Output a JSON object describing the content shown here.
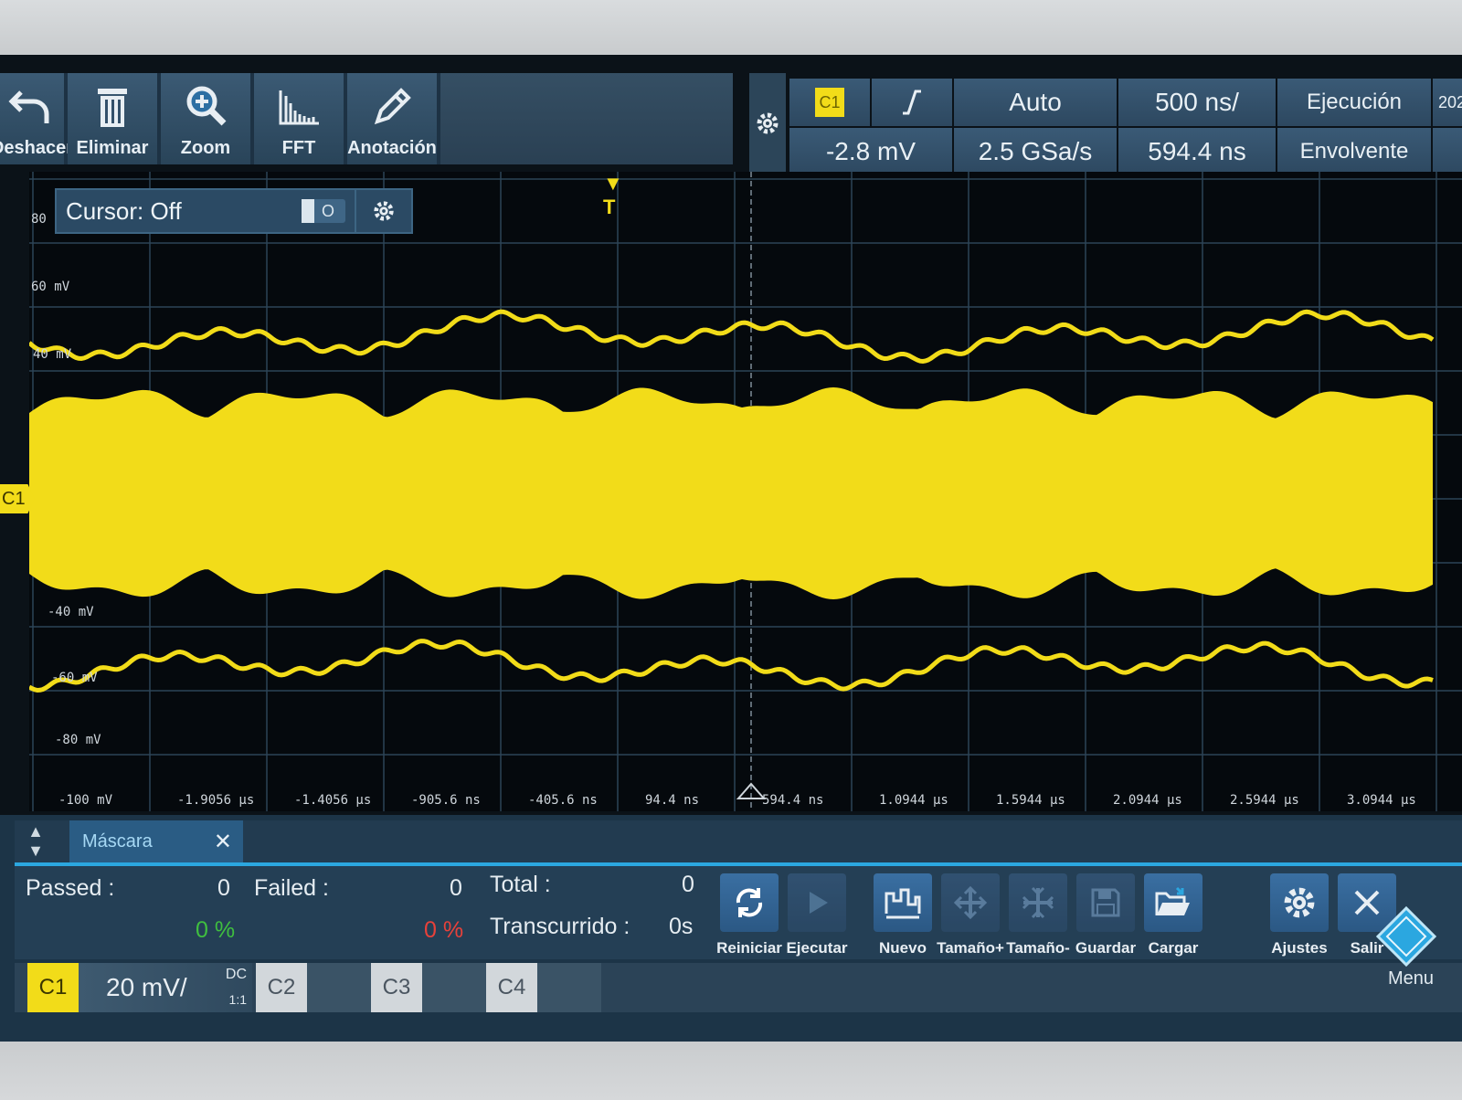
{
  "toolbar": {
    "undo": "Deshacer",
    "delete": "Eliminar",
    "zoom": "Zoom",
    "fft": "FFT",
    "annotation": "Anotación"
  },
  "status": {
    "channel_badge": "C1",
    "trigger_mode": "Auto",
    "timebase": "500 ns/",
    "run_state": "Ejecución",
    "trigger_level": "-2.8 mV",
    "sample_rate": "2.5 GSa/s",
    "horizontal_position": "594.4 ns",
    "acquisition_mode": "Envolvente",
    "date_partial": "202"
  },
  "cursor": {
    "label": "Cursor: Off",
    "toggle_label": "O"
  },
  "waveform": {
    "channel_marker": "C1",
    "trigger_marker": "T",
    "color": "#f2dc19",
    "y_labels": [
      "80",
      "60 mV",
      "40 mV",
      "-40 mV",
      "-60 mV",
      "-80 mV",
      "-100 mV"
    ],
    "x_labels": [
      "-1.9056 µs",
      "-1.4056 µs",
      "-905.6 ns",
      "-405.6 ns",
      "94.4 ns",
      "594.4 ns",
      "1.0944 µs",
      "1.5944 µs",
      "2.0944 µs",
      "2.5944 µs",
      "3.0944 µs"
    ]
  },
  "mask": {
    "tab_label": "Máscara",
    "passed_label": "Passed :",
    "passed_value": "0",
    "passed_pct": "0 %",
    "failed_label": "Failed :",
    "failed_value": "0",
    "failed_pct": "0 %",
    "total_label": "Total :",
    "total_value": "0",
    "elapsed_label": "Transcurrido :",
    "elapsed_value": "0s",
    "buttons": {
      "restart": "Reiniciar",
      "run": "Ejecutar",
      "new": "Nuevo",
      "size_plus": "Tamaño+",
      "size_minus": "Tamaño-",
      "save": "Guardar",
      "load": "Cargar",
      "settings": "Ajustes",
      "exit": "Salir"
    }
  },
  "channels": {
    "c1": "C1",
    "c1_scale": "20 mV/",
    "c1_coupling": "DC",
    "c1_ratio": "1:1",
    "c2": "C2",
    "c3": "C3",
    "c4": "C4"
  },
  "menu_label": "Menu",
  "colors": {
    "accent": "#2ba7e0",
    "trace": "#f2dc19",
    "fail": "#e8413a",
    "pass": "#3fbf3f"
  }
}
